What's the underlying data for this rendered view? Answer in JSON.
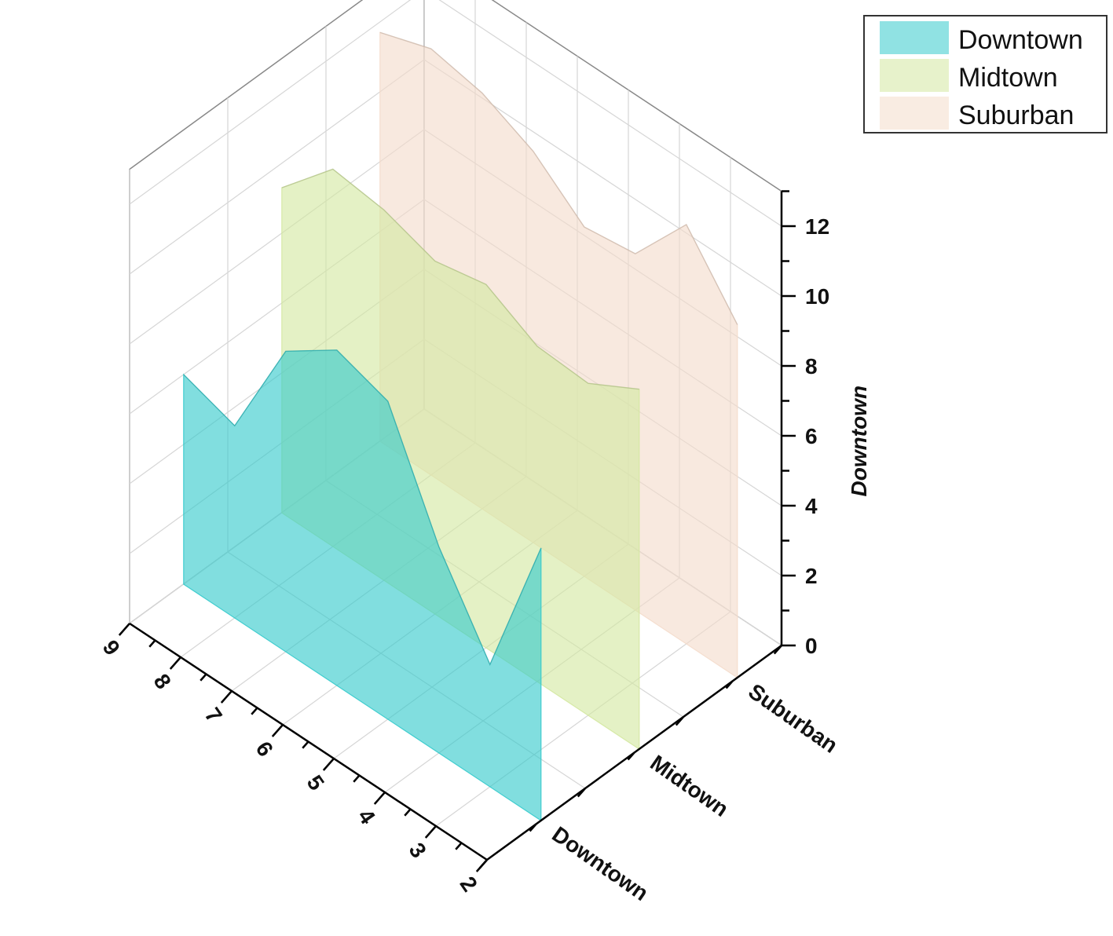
{
  "chart_data": {
    "type": "area",
    "subtype": "3d-wall-area",
    "title": "",
    "x": [
      2,
      3,
      4,
      5,
      6,
      7,
      8,
      9
    ],
    "y_categories": [
      "Downtown",
      "Midtown",
      "Suburban"
    ],
    "zlabel": "Downtown",
    "zlim": [
      0,
      13
    ],
    "z_ticks": [
      0,
      2,
      4,
      6,
      8,
      10,
      12
    ],
    "series": [
      {
        "name": "Downtown",
        "color": "#34CACC",
        "values": [
          7.8,
          3.5,
          5.9,
          9.1,
          9.6,
          8.6,
          5.5,
          6.0
        ]
      },
      {
        "name": "Midtown",
        "color": "#D4E8A1",
        "values": [
          10.3,
          9.5,
          9.6,
          10.4,
          10.1,
          10.6,
          10.8,
          9.3
        ]
      },
      {
        "name": "Suburban",
        "color": "#F4DCCB",
        "values": [
          10.1,
          12.0,
          10.2,
          10.0,
          11.2,
          11.9,
          12.2,
          11.7
        ]
      }
    ],
    "legend": {
      "position": "top-right",
      "entries": [
        "Downtown",
        "Midtown",
        "Suburban"
      ]
    },
    "grid": true
  }
}
